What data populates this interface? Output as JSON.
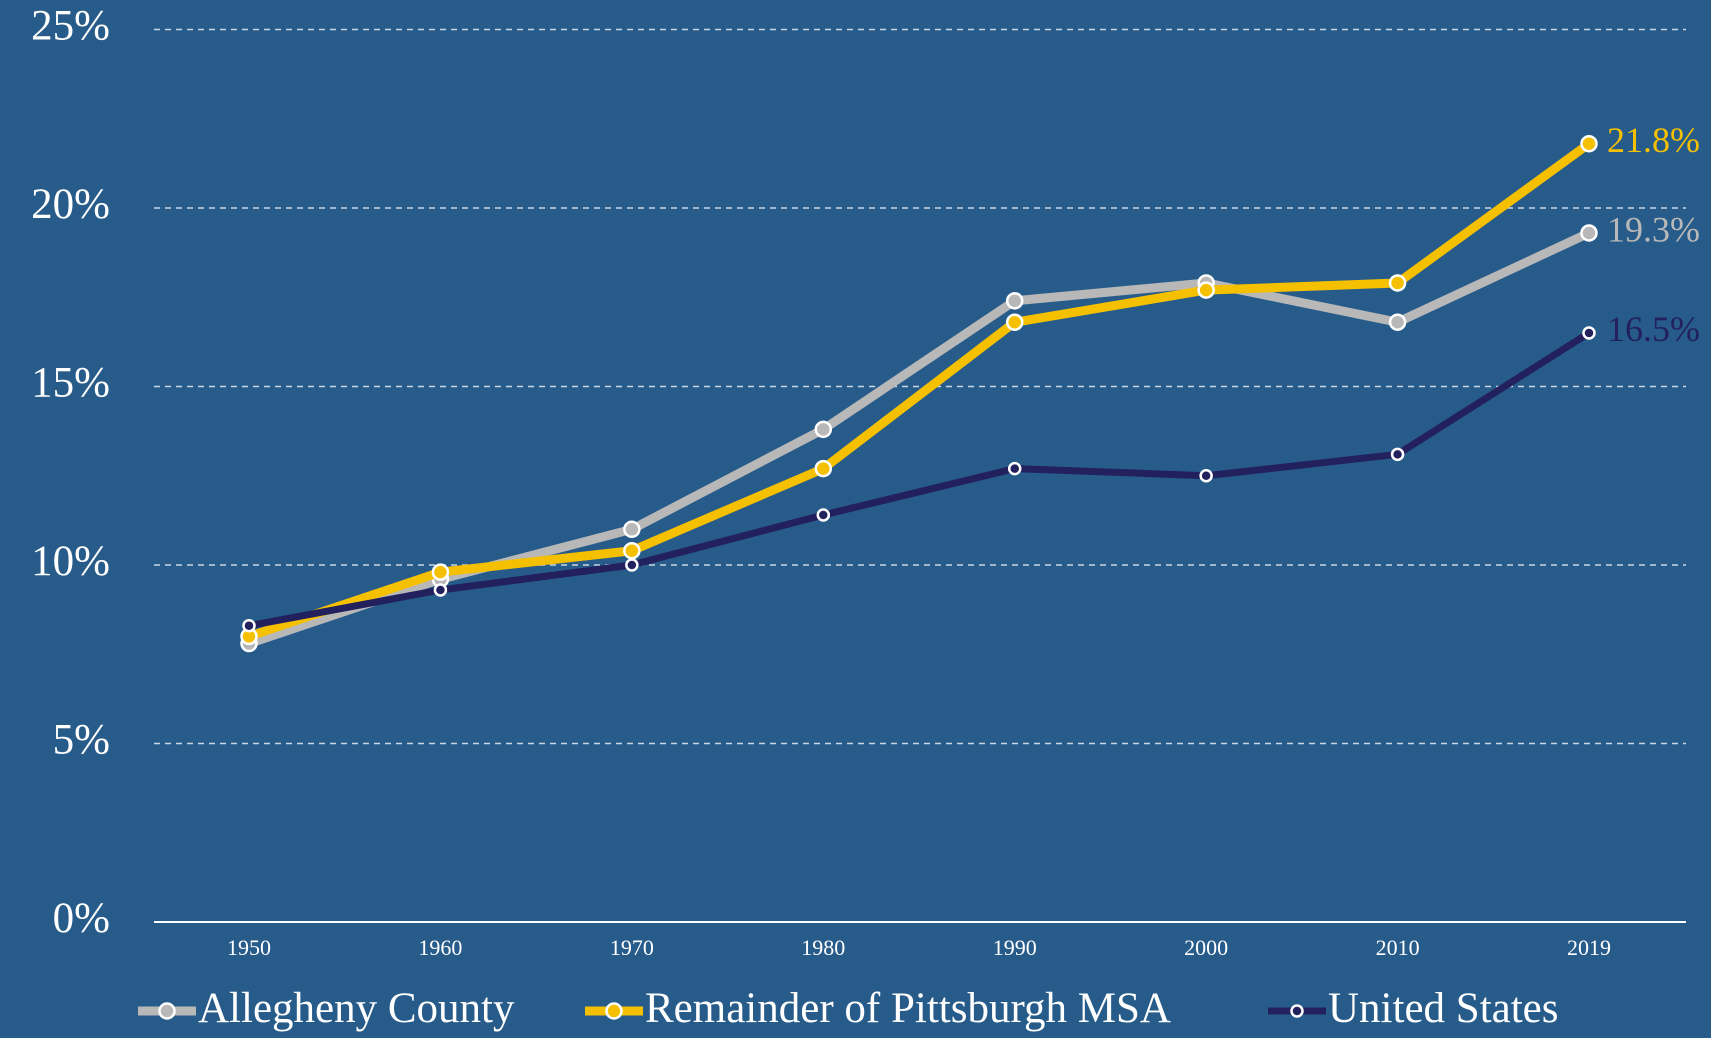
{
  "chart_data": {
    "type": "line",
    "categories": [
      "1950",
      "1960",
      "1970",
      "1980",
      "1990",
      "2000",
      "2010",
      "2019"
    ],
    "series": [
      {
        "name": "Allegheny County",
        "color": "#b8b8b8",
        "values": [
          7.8,
          9.6,
          11.0,
          13.8,
          17.4,
          17.9,
          16.8,
          19.3
        ],
        "value_labels": [
          null,
          null,
          null,
          null,
          null,
          null,
          null,
          "19.3%"
        ]
      },
      {
        "name": "Remainder of Pittsburgh MSA",
        "color": "#f5c000",
        "values": [
          8.0,
          9.8,
          10.4,
          12.7,
          16.8,
          17.7,
          17.9,
          21.8
        ],
        "value_labels": [
          null,
          null,
          null,
          null,
          null,
          null,
          null,
          "21.8%"
        ]
      },
      {
        "name": "United States",
        "color": "#23205e",
        "values": [
          8.3,
          9.3,
          10.0,
          11.4,
          12.7,
          12.5,
          13.1,
          16.5
        ],
        "value_labels": [
          null,
          null,
          null,
          null,
          null,
          null,
          null,
          "16.5%"
        ]
      }
    ],
    "ylim": [
      0,
      25
    ],
    "yticks": [
      {
        "value": 0,
        "label": "0%"
      },
      {
        "value": 5,
        "label": "5%"
      },
      {
        "value": 10,
        "label": "10%"
      },
      {
        "value": 15,
        "label": "15%"
      },
      {
        "value": 20,
        "label": "20%"
      },
      {
        "value": 25,
        "label": "25%"
      }
    ],
    "grid": true,
    "legend": "bottom",
    "background": "#275b8a"
  }
}
